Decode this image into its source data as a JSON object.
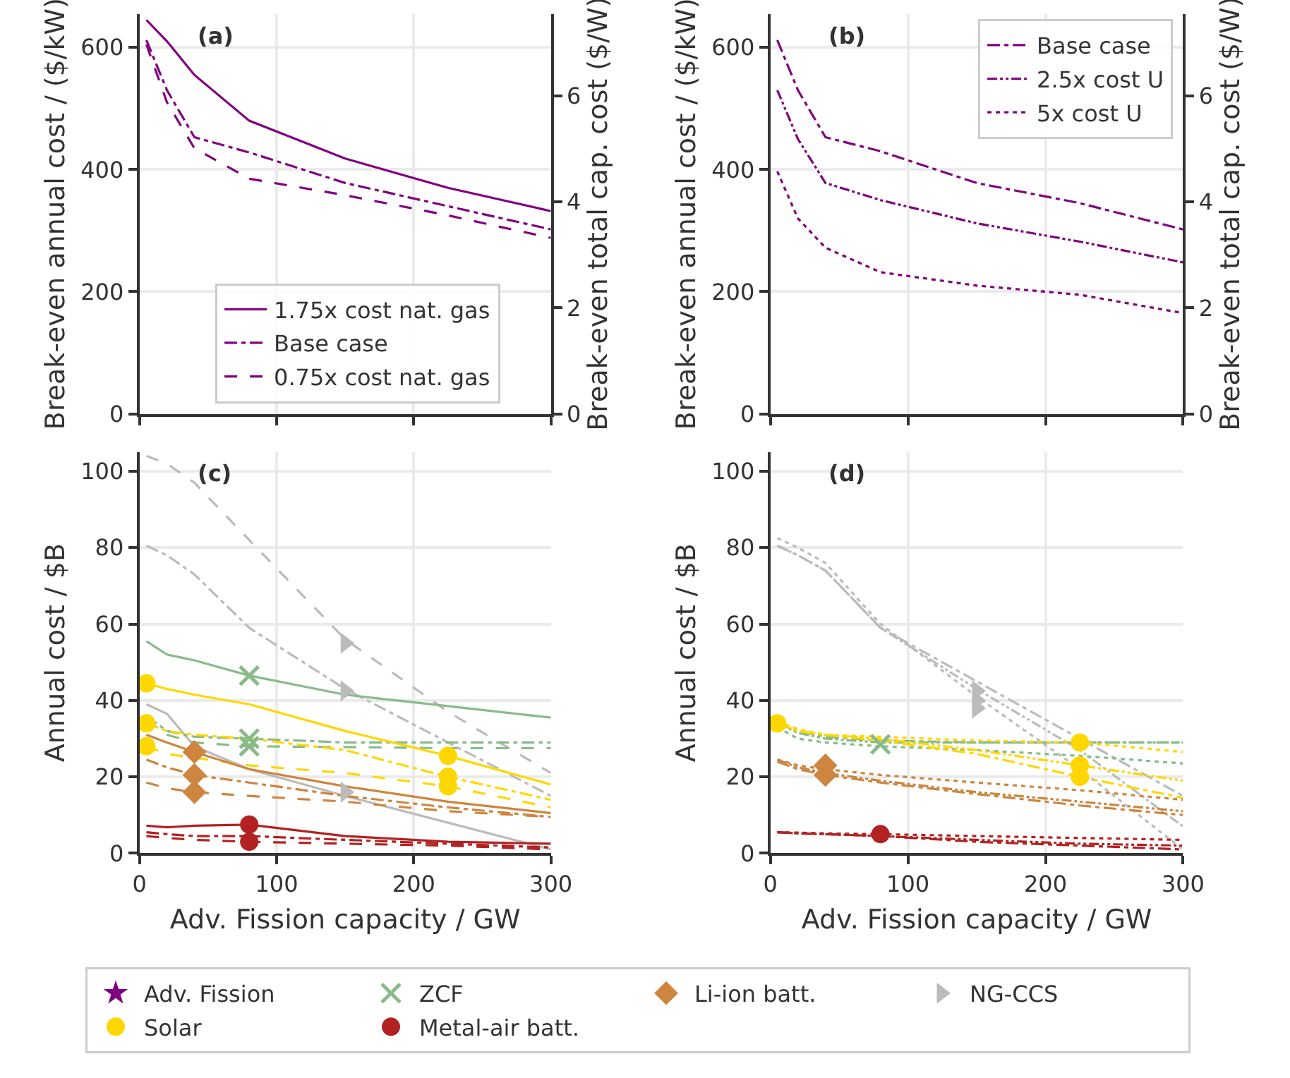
{
  "chart_data": [
    {
      "type": "line",
      "x": [
        5,
        20,
        40,
        80,
        150,
        225,
        300
      ],
      "xlim": [
        0,
        300
      ],
      "xticks": [
        0,
        100,
        200,
        300
      ],
      "ylim": [
        0,
        655
      ],
      "yticks": [
        0,
        200,
        400,
        600
      ],
      "y2lim": [
        0,
        7.55
      ],
      "y2ticks": [
        0,
        2,
        4,
        6
      ],
      "ylabel": "Break-even annual cost / ($/kW)",
      "y2label": "Break-even total cap. cost ($/W)",
      "tick_labels": "y",
      "grid": true,
      "legend": "bottom center",
      "annotations": [
        "(a)"
      ],
      "series": [
        {
          "name": "1.75x cost nat. gas",
          "color": "#800080",
          "line_style": "solid",
          "values": [
            645,
            610,
            555,
            480,
            418,
            370,
            332
          ]
        },
        {
          "name": "Base case",
          "color": "#800080",
          "line_style": "dashdot",
          "values": [
            612,
            530,
            453,
            428,
            378,
            340,
            302
          ]
        },
        {
          "name": "0.75x cost nat. gas",
          "color": "#800080",
          "line_style": "dashed",
          "values": [
            605,
            510,
            435,
            385,
            358,
            325,
            288
          ]
        }
      ]
    },
    {
      "type": "line",
      "x": [
        5,
        20,
        40,
        80,
        150,
        225,
        300
      ],
      "xlim": [
        0,
        300
      ],
      "xticks": [
        0,
        100,
        200,
        300
      ],
      "ylim": [
        0,
        655
      ],
      "yticks": [
        0,
        200,
        400,
        600
      ],
      "y2lim": [
        0,
        7.55
      ],
      "y2ticks": [
        0,
        2,
        4,
        6
      ],
      "ylabel": "Break-even annual cost / ($/kW)",
      "y2label": "Break-even total cap. cost ($/W)",
      "tick_labels": "y",
      "grid": true,
      "legend": "top right",
      "annotations": [
        "(b)"
      ],
      "series": [
        {
          "name": "Base case",
          "color": "#800080",
          "line_style": "dashdot",
          "values": [
            612,
            530,
            453,
            430,
            378,
            345,
            302
          ]
        },
        {
          "name": "2.5x cost U",
          "color": "#800080",
          "line_style": "dashdotdot",
          "values": [
            530,
            450,
            378,
            350,
            312,
            282,
            248
          ]
        },
        {
          "name": "5x cost U",
          "color": "#800080",
          "line_style": "dotted",
          "values": [
            397,
            320,
            272,
            232,
            210,
            195,
            165
          ]
        }
      ]
    },
    {
      "type": "line",
      "x": [
        5,
        20,
        40,
        80,
        150,
        225,
        300
      ],
      "xlim": [
        0,
        300
      ],
      "xticks": [
        0,
        100,
        200,
        300
      ],
      "ylim": [
        0,
        105
      ],
      "yticks": [
        0,
        20,
        40,
        60,
        80,
        100
      ],
      "xlabel": "Adv. Fission capacity / GW",
      "ylabel": "Annual cost / $B",
      "grid": true,
      "legend": "bottom",
      "annotations": [
        "(c)"
      ],
      "series": [
        {
          "color": "#bbbbbb",
          "line_style": "dashed",
          "values": [
            104,
            102,
            97,
            82,
            56,
            37,
            21
          ]
        },
        {
          "color": "#bbbbbb",
          "line_style": "dashdot",
          "values": [
            80.5,
            78,
            73,
            59,
            43,
            29,
            15
          ]
        },
        {
          "color": "#bbbbbb",
          "line_style": "solid",
          "values": [
            39,
            36.5,
            28,
            22,
            15,
            8,
            1
          ]
        },
        {
          "color": "#88bb88",
          "line_style": "solid",
          "values": [
            55.5,
            52,
            50.5,
            46.5,
            41.5,
            38.5,
            35.5
          ]
        },
        {
          "color": "#88bb88",
          "line_style": "dashdot",
          "values": [
            36,
            32,
            30.5,
            30,
            29,
            29,
            29
          ]
        },
        {
          "color": "#88bb88",
          "line_style": "dashed",
          "values": [
            35,
            31,
            29,
            28,
            27.8,
            27.5,
            27.5
          ]
        },
        {
          "color": "#ffd700",
          "line_style": "solid",
          "values": [
            44.5,
            43,
            41.5,
            39,
            32,
            25.5,
            18
          ]
        },
        {
          "color": "#ffd700",
          "line_style": "dashdot",
          "values": [
            34,
            32,
            31,
            30,
            27,
            20,
            14
          ]
        },
        {
          "color": "#ffd700",
          "line_style": "dashed",
          "values": [
            28,
            26,
            25,
            23,
            21,
            17.5,
            12
          ]
        },
        {
          "color": "#cd853f",
          "line_style": "solid",
          "values": [
            31,
            29,
            26.5,
            22,
            17.5,
            13.5,
            10.5
          ]
        },
        {
          "color": "#cd853f",
          "line_style": "dashdot",
          "values": [
            24.5,
            22.5,
            20.5,
            18.5,
            15,
            12,
            9.5
          ]
        },
        {
          "color": "#cd853f",
          "line_style": "dashed",
          "values": [
            18.5,
            17,
            16,
            15,
            13.5,
            11,
            9.5
          ]
        },
        {
          "color": "#b22222",
          "line_style": "solid",
          "values": [
            7.2,
            6.8,
            7.2,
            7.5,
            4.5,
            3,
            2.5
          ]
        },
        {
          "color": "#b22222",
          "line_style": "dashdot",
          "values": [
            5.5,
            5,
            4.5,
            4.5,
            3.5,
            2.5,
            1.5
          ]
        },
        {
          "color": "#b22222",
          "line_style": "dashed",
          "values": [
            4.5,
            4,
            3.5,
            3,
            2.5,
            2,
            1
          ]
        },
        {
          "name": "Adv. Fission",
          "type": "scatter",
          "marker": "star",
          "color": "#800080",
          "values": [
            null,
            null,
            null,
            null,
            null,
            null,
            null
          ]
        },
        {
          "name": "ZCF",
          "type": "scatter",
          "marker": "cross",
          "color": "#88bb88",
          "x": [
            80,
            80,
            80
          ],
          "values": [
            46.5,
            30,
            28
          ]
        },
        {
          "name": "Li-ion batt.",
          "type": "scatter",
          "marker": "diamond",
          "color": "#cd853f",
          "x": [
            40,
            40,
            40
          ],
          "values": [
            26.5,
            20.5,
            16
          ]
        },
        {
          "name": "NG-CCS",
          "type": "scatter",
          "marker": "triangle",
          "color": "#bbbbbb",
          "x": [
            150,
            150,
            150
          ],
          "values": [
            55,
            42.5,
            16
          ]
        },
        {
          "name": "Solar",
          "type": "scatter",
          "marker": "circle",
          "color": "#ffd700",
          "x": [
            5,
            5,
            5,
            225,
            225,
            225
          ],
          "values": [
            44.5,
            34,
            28,
            25.5,
            20,
            17.5
          ]
        },
        {
          "name": "Metal-air batt.",
          "type": "scatter",
          "marker": "circle",
          "color": "#b22222",
          "x": [
            80,
            80
          ],
          "values": [
            7.5,
            3
          ]
        }
      ]
    },
    {
      "type": "line",
      "x": [
        5,
        20,
        40,
        80,
        150,
        225,
        300
      ],
      "xlim": [
        0,
        300
      ],
      "xticks": [
        0,
        100,
        200,
        300
      ],
      "ylim": [
        0,
        105
      ],
      "yticks": [
        0,
        20,
        40,
        60,
        80,
        100
      ],
      "xlabel": "Adv. Fission capacity / GW",
      "ylabel": "Annual cost / $B",
      "grid": true,
      "annotations": [
        "(d)"
      ],
      "series": [
        {
          "color": "#bbbbbb",
          "line_style": "dashdot",
          "values": [
            80.5,
            78,
            74,
            59,
            45,
            30,
            15
          ]
        },
        {
          "color": "#bbbbbb",
          "line_style": "dashdotdot",
          "values": [
            80.5,
            78,
            74,
            59,
            43,
            27,
            7
          ]
        },
        {
          "color": "#bbbbbb",
          "line_style": "dotted",
          "values": [
            82.5,
            80,
            76,
            60,
            41,
            22,
            1
          ]
        },
        {
          "color": "#88bb88",
          "line_style": "dashdot",
          "values": [
            34,
            32,
            30.5,
            29.5,
            29,
            29,
            29
          ]
        },
        {
          "color": "#88bb88",
          "line_style": "dashdotdot",
          "values": [
            34,
            31.5,
            30,
            29,
            29,
            29,
            29
          ]
        },
        {
          "color": "#88bb88",
          "line_style": "dotted",
          "values": [
            33,
            30,
            29,
            28,
            27,
            25.5,
            23.5
          ]
        },
        {
          "color": "#ffd700",
          "line_style": "dotted",
          "values": [
            34.5,
            32.5,
            31,
            30.5,
            29.5,
            29,
            26.5
          ]
        },
        {
          "color": "#ffd700",
          "line_style": "dashdotdot",
          "values": [
            34,
            32,
            31,
            30,
            27,
            23,
            19
          ]
        },
        {
          "color": "#ffd700",
          "line_style": "dashdot",
          "values": [
            34,
            32,
            31,
            29.5,
            26,
            20,
            14.5
          ]
        },
        {
          "color": "#cd853f",
          "line_style": "dotted",
          "values": [
            24.5,
            23,
            22,
            20.5,
            18.5,
            16.5,
            14
          ]
        },
        {
          "color": "#cd853f",
          "line_style": "dashdotdot",
          "values": [
            24.5,
            22.5,
            21,
            19,
            16,
            13.5,
            11
          ]
        },
        {
          "color": "#cd853f",
          "line_style": "dashdot",
          "values": [
            24,
            22,
            20.5,
            18.5,
            15.5,
            12.5,
            10
          ]
        },
        {
          "color": "#b22222",
          "line_style": "dotted",
          "values": [
            5.5,
            5.4,
            5.2,
            5,
            4.5,
            4,
            3.5
          ]
        },
        {
          "color": "#b22222",
          "line_style": "dashdotdot",
          "values": [
            5.5,
            5.2,
            5,
            4.5,
            3.5,
            2.5,
            2
          ]
        },
        {
          "color": "#b22222",
          "line_style": "dashdot",
          "values": [
            5.5,
            5.2,
            5,
            4.5,
            3,
            2,
            1
          ]
        },
        {
          "type": "scatter",
          "marker": "cross",
          "color": "#88bb88",
          "x": [
            80
          ],
          "values": [
            28.5
          ]
        },
        {
          "type": "scatter",
          "marker": "diamond",
          "color": "#cd853f",
          "x": [
            40,
            40
          ],
          "values": [
            23,
            20.5
          ]
        },
        {
          "type": "scatter",
          "marker": "triangle",
          "color": "#bbbbbb",
          "x": [
            150,
            150,
            150
          ],
          "values": [
            42.5,
            40,
            38
          ]
        },
        {
          "type": "scatter",
          "marker": "circle",
          "color": "#ffd700",
          "x": [
            5,
            225,
            225,
            225
          ],
          "values": [
            34,
            29,
            23,
            20
          ]
        },
        {
          "type": "scatter",
          "marker": "circle",
          "color": "#b22222",
          "x": [
            80
          ],
          "values": [
            5
          ]
        }
      ]
    }
  ]
}
